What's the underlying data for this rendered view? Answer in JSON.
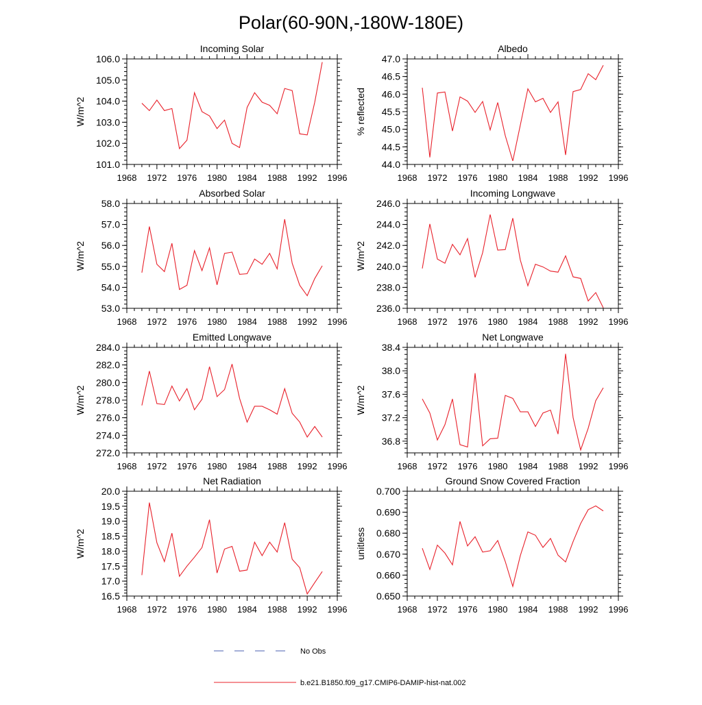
{
  "title": "Polar(60-90N,-180W-180E)",
  "legend": [
    {
      "label": "No Obs",
      "color": "#4a5fb0",
      "style": "dashed"
    },
    {
      "label": "b.e21.B1850.f09_g17.CMIP6-DAMIP-hist-nat.002",
      "color": "#e8202a",
      "style": "solid"
    }
  ],
  "colors": {
    "series": "#e8202a",
    "obs": "#4a5fb0"
  },
  "chart_data": [
    {
      "type": "line",
      "title": "Incoming Solar",
      "ylabel": "W/m^2",
      "xlim": [
        1968,
        1996
      ],
      "xticks": [
        1968,
        1972,
        1976,
        1980,
        1984,
        1988,
        1992,
        1996
      ],
      "ylim": [
        101.0,
        106.0
      ],
      "yticks": [
        "101.0",
        "102.0",
        "103.0",
        "104.0",
        "105.0",
        "106.0"
      ],
      "x": [
        1970,
        1971,
        1972,
        1973,
        1974,
        1975,
        1976,
        1977,
        1978,
        1979,
        1980,
        1981,
        1982,
        1983,
        1984,
        1985,
        1986,
        1987,
        1988,
        1989,
        1990,
        1991,
        1992,
        1993,
        1994
      ],
      "series": [
        {
          "name": "b.e21.B1850.f09_g17.CMIP6-DAMIP-hist-nat.002",
          "values": [
            103.9,
            103.55,
            104.05,
            103.55,
            103.65,
            101.75,
            102.15,
            104.4,
            103.5,
            103.3,
            102.7,
            103.1,
            102.0,
            101.8,
            103.7,
            104.4,
            103.95,
            103.8,
            103.4,
            104.6,
            104.5,
            102.45,
            102.4,
            103.95,
            105.85
          ]
        }
      ]
    },
    {
      "type": "line",
      "title": "Albedo",
      "ylabel": "% reflected",
      "xlim": [
        1968,
        1996
      ],
      "xticks": [
        1968,
        1972,
        1976,
        1980,
        1984,
        1988,
        1992,
        1996
      ],
      "ylim": [
        44.0,
        47.0
      ],
      "yticks": [
        "44.0",
        "44.5",
        "45.0",
        "45.5",
        "46.0",
        "46.5",
        "47.0"
      ],
      "x": [
        1970,
        1971,
        1972,
        1973,
        1974,
        1975,
        1976,
        1977,
        1978,
        1979,
        1980,
        1981,
        1982,
        1983,
        1984,
        1985,
        1986,
        1987,
        1988,
        1989,
        1990,
        1991,
        1992,
        1993,
        1994
      ],
      "series": [
        {
          "name": "b.e21.B1850.f09_g17.CMIP6-DAMIP-hist-nat.002",
          "values": [
            46.18,
            44.2,
            46.03,
            46.06,
            44.95,
            45.92,
            45.8,
            45.48,
            45.79,
            44.98,
            45.76,
            44.82,
            44.1,
            45.12,
            46.15,
            45.78,
            45.88,
            45.48,
            45.78,
            44.27,
            46.07,
            46.13,
            46.58,
            46.41,
            46.82
          ]
        }
      ]
    },
    {
      "type": "line",
      "title": "Absorbed Solar",
      "ylabel": "W/m^2",
      "xlim": [
        1968,
        1996
      ],
      "xticks": [
        1968,
        1972,
        1976,
        1980,
        1984,
        1988,
        1992,
        1996
      ],
      "ylim": [
        53.0,
        58.0
      ],
      "yticks": [
        "53.0",
        "54.0",
        "55.0",
        "56.0",
        "57.0",
        "58.0"
      ],
      "x": [
        1970,
        1971,
        1972,
        1973,
        1974,
        1975,
        1976,
        1977,
        1978,
        1979,
        1980,
        1981,
        1982,
        1983,
        1984,
        1985,
        1986,
        1987,
        1988,
        1989,
        1990,
        1991,
        1992,
        1993,
        1994
      ],
      "series": [
        {
          "name": "b.e21.B1850.f09_g17.CMIP6-DAMIP-hist-nat.002",
          "values": [
            54.7,
            56.9,
            55.1,
            54.75,
            56.1,
            53.9,
            54.1,
            55.75,
            54.8,
            55.88,
            54.12,
            55.62,
            55.68,
            54.62,
            54.65,
            55.35,
            55.1,
            55.62,
            54.88,
            57.25,
            55.15,
            54.1,
            53.6,
            54.42,
            55.03
          ]
        }
      ]
    },
    {
      "type": "line",
      "title": "Incoming Longwave",
      "ylabel": "W/m^2",
      "xlim": [
        1968,
        1996
      ],
      "xticks": [
        1968,
        1972,
        1976,
        1980,
        1984,
        1988,
        1992,
        1996
      ],
      "ylim": [
        236.0,
        246.0
      ],
      "yticks": [
        "236.0",
        "238.0",
        "240.0",
        "242.0",
        "244.0",
        "246.0"
      ],
      "x": [
        1970,
        1971,
        1972,
        1973,
        1974,
        1975,
        1976,
        1977,
        1978,
        1979,
        1980,
        1981,
        1982,
        1983,
        1984,
        1985,
        1986,
        1987,
        1988,
        1989,
        1990,
        1991,
        1992,
        1993,
        1994
      ],
      "series": [
        {
          "name": "b.e21.B1850.f09_g17.CMIP6-DAMIP-hist-nat.002",
          "values": [
            239.8,
            244.05,
            240.7,
            240.3,
            242.1,
            241.1,
            242.65,
            238.95,
            241.3,
            244.95,
            241.55,
            241.6,
            244.6,
            240.6,
            238.15,
            240.2,
            239.95,
            239.55,
            239.45,
            241.0,
            239.0,
            238.85,
            236.7,
            237.5,
            236.05
          ]
        }
      ]
    },
    {
      "type": "line",
      "title": "Emitted Longwave",
      "ylabel": "W/m^2",
      "xlim": [
        1968,
        1996
      ],
      "xticks": [
        1968,
        1972,
        1976,
        1980,
        1984,
        1988,
        1992,
        1996
      ],
      "ylim": [
        272.0,
        284.0
      ],
      "yticks": [
        "272.0",
        "274.0",
        "276.0",
        "278.0",
        "280.0",
        "282.0",
        "284.0"
      ],
      "x": [
        1970,
        1971,
        1972,
        1973,
        1974,
        1975,
        1976,
        1977,
        1978,
        1979,
        1980,
        1981,
        1982,
        1983,
        1984,
        1985,
        1986,
        1987,
        1988,
        1989,
        1990,
        1991,
        1992,
        1993,
        1994
      ],
      "series": [
        {
          "name": "b.e21.B1850.f09_g17.CMIP6-DAMIP-hist-nat.002",
          "values": [
            277.4,
            281.3,
            277.6,
            277.5,
            279.6,
            277.9,
            279.3,
            276.9,
            278.1,
            281.8,
            278.4,
            279.2,
            282.1,
            278.2,
            275.5,
            277.3,
            277.3,
            276.9,
            276.4,
            279.3,
            276.5,
            275.5,
            273.8,
            275.0,
            273.8
          ]
        }
      ]
    },
    {
      "type": "line",
      "title": "Net Longwave",
      "ylabel": "W/m^2",
      "xlim": [
        1968,
        1996
      ],
      "xticks": [
        1968,
        1972,
        1976,
        1980,
        1984,
        1988,
        1992,
        1996
      ],
      "ylim": [
        36.6,
        38.4
      ],
      "yticks": [
        "36.8",
        "37.2",
        "37.6",
        "38.0",
        "38.4"
      ],
      "ytick_values": [
        36.8,
        37.2,
        37.6,
        38.0,
        38.4
      ],
      "x": [
        1970,
        1971,
        1972,
        1973,
        1974,
        1975,
        1976,
        1977,
        1978,
        1979,
        1980,
        1981,
        1982,
        1983,
        1984,
        1985,
        1986,
        1987,
        1988,
        1989,
        1990,
        1991,
        1992,
        1993,
        1994
      ],
      "series": [
        {
          "name": "b.e21.B1850.f09_g17.CMIP6-DAMIP-hist-nat.002",
          "values": [
            37.52,
            37.28,
            36.82,
            37.08,
            37.52,
            36.74,
            36.7,
            37.96,
            36.72,
            36.84,
            36.85,
            37.58,
            37.53,
            37.3,
            37.3,
            37.05,
            37.28,
            37.33,
            36.92,
            38.29,
            37.2,
            36.65,
            37.02,
            37.49,
            37.71
          ]
        }
      ]
    },
    {
      "type": "line",
      "title": "Net Radiation",
      "ylabel": "W/m^2",
      "xlim": [
        1968,
        1996
      ],
      "xticks": [
        1968,
        1972,
        1976,
        1980,
        1984,
        1988,
        1992,
        1996
      ],
      "ylim": [
        16.5,
        20.0
      ],
      "yticks": [
        "16.5",
        "17.0",
        "17.5",
        "18.0",
        "18.5",
        "19.0",
        "19.5",
        "20.0"
      ],
      "x": [
        1970,
        1971,
        1972,
        1973,
        1974,
        1975,
        1976,
        1977,
        1978,
        1979,
        1980,
        1981,
        1982,
        1983,
        1984,
        1985,
        1986,
        1987,
        1988,
        1989,
        1990,
        1991,
        1992,
        1993,
        1994
      ],
      "series": [
        {
          "name": "b.e21.B1850.f09_g17.CMIP6-DAMIP-hist-nat.002",
          "values": [
            17.2,
            19.62,
            18.28,
            17.65,
            18.6,
            17.16,
            17.5,
            17.8,
            18.12,
            19.05,
            17.27,
            18.07,
            18.16,
            17.33,
            17.37,
            18.3,
            17.85,
            18.3,
            17.97,
            18.95,
            17.73,
            17.45,
            16.57,
            16.95,
            17.32
          ]
        }
      ]
    },
    {
      "type": "line",
      "title": "Ground Snow Covered Fraction",
      "ylabel": "unitless",
      "xlim": [
        1968,
        1996
      ],
      "xticks": [
        1968,
        1972,
        1976,
        1980,
        1984,
        1988,
        1992,
        1996
      ],
      "ylim": [
        0.65,
        0.7
      ],
      "yticks": [
        "0.650",
        "0.660",
        "0.670",
        "0.680",
        "0.690",
        "0.700"
      ],
      "x": [
        1970,
        1971,
        1972,
        1973,
        1974,
        1975,
        1976,
        1977,
        1978,
        1979,
        1980,
        1981,
        1982,
        1983,
        1984,
        1985,
        1986,
        1987,
        1988,
        1989,
        1990,
        1991,
        1992,
        1993,
        1994
      ],
      "series": [
        {
          "name": "b.e21.B1850.f09_g17.CMIP6-DAMIP-hist-nat.002",
          "values": [
            0.6728,
            0.6627,
            0.6743,
            0.6705,
            0.6649,
            0.6856,
            0.6739,
            0.6783,
            0.671,
            0.6716,
            0.6765,
            0.6665,
            0.6546,
            0.6693,
            0.6806,
            0.679,
            0.6732,
            0.6775,
            0.6695,
            0.6663,
            0.676,
            0.6846,
            0.6912,
            0.693,
            0.6906
          ]
        }
      ]
    }
  ]
}
